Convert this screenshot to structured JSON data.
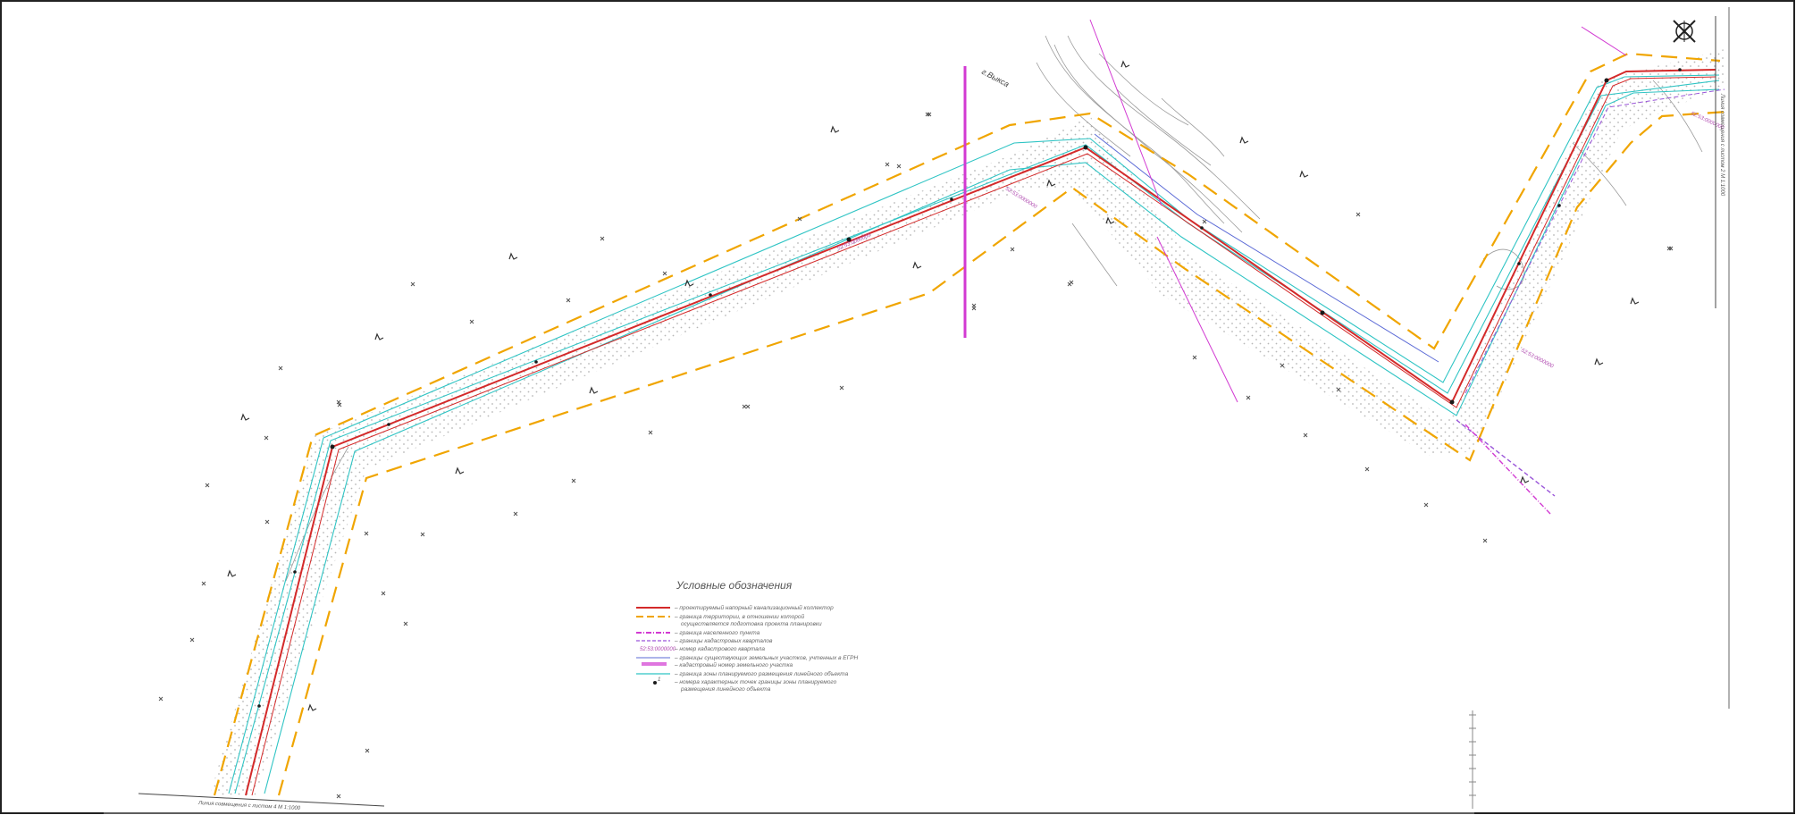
{
  "map": {
    "town_label": "г.Выкса",
    "match_line_bottom": "Линия совмещения с листом 4 М 1:1000",
    "match_line_right": "Линия совмещения с листом 2 М 1:1000",
    "cadastral_labels": [
      "52:53:0000000",
      "52:53:0000000",
      "52:53:0000000",
      "52:53:0000000"
    ]
  },
  "legend": {
    "title": "Условные обозначения",
    "items": [
      {
        "symbol": "red-line",
        "text": "– проектируемый напорный канализационный коллектор"
      },
      {
        "symbol": "orange-dash",
        "text": "– граница территории, в отношении которой"
      },
      {
        "symbol": "none",
        "text": "осуществляется подготовка проекта планировки"
      },
      {
        "symbol": "dashdot-pink",
        "text": "– граница населенного пункта"
      },
      {
        "symbol": "purple-dash",
        "text": "– границы кадастровых кварталов"
      },
      {
        "symbol": "code",
        "code": "52:53:0000000",
        "text": "– номер кадастрового квартала"
      },
      {
        "symbol": "blue-line",
        "text": "– границы существующих земельных участков, учтенных в ЕГРН"
      },
      {
        "symbol": "pink-box",
        "text": "– кадастровый номер земельного участка"
      },
      {
        "symbol": "cyan-line",
        "text": "– граница зоны планируемого размещения линейного объекта"
      },
      {
        "symbol": "point",
        "text": "– номера характерных точек границы зоны планируемого"
      },
      {
        "symbol": "none",
        "text": "размещения линейного объекта"
      }
    ]
  },
  "colors": {
    "collector": "#d42a2a",
    "boundary": "#f0a500",
    "zone": "#2fc4c4",
    "settlement": "#d23ad2",
    "quarter": "#9a55d9",
    "parcels": "#5b6ad6",
    "survey": "#9a9a9a"
  },
  "icons": [
    "north-arrow-icon",
    "tree-icon",
    "cross-marker-icon"
  ]
}
